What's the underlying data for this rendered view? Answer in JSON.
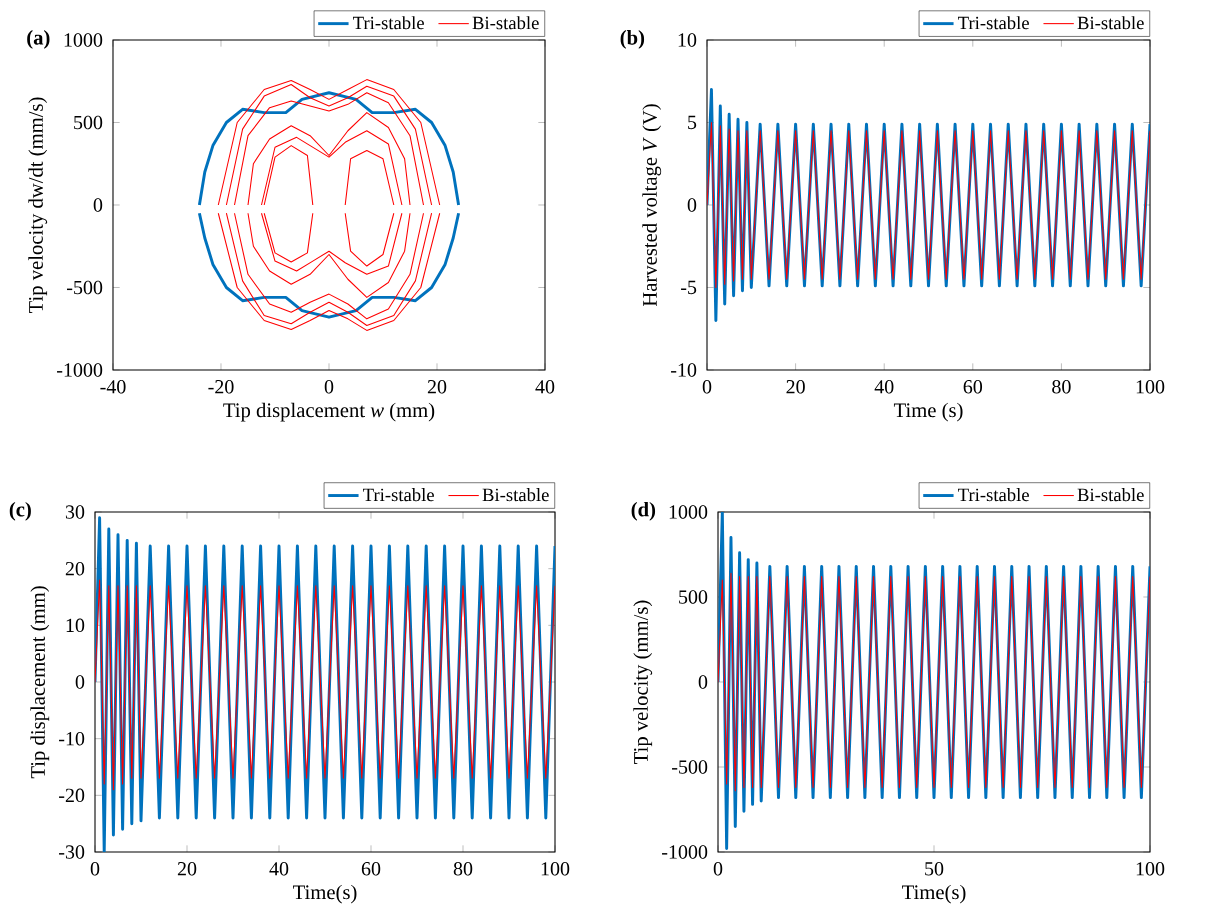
{
  "chart_data": [
    {
      "type": "line",
      "title": "**(a)**",
      "xlabel": "Tip displacement *w* (mm)",
      "ylabel": "Tip velocity dw/dt (mm/s)",
      "xlim": [
        -40,
        40
      ],
      "xticks": [
        -40,
        -20,
        0,
        20,
        40
      ],
      "ylim": [
        -1000,
        1000
      ],
      "yticks": [
        -1000,
        -500,
        0,
        500,
        1000
      ],
      "legend": "top right",
      "grid": false,
      "series": [
        {
          "name": "Tri-stable",
          "color": "#0072bd",
          "x": [
            -24,
            -23,
            -21.5,
            -19,
            -16,
            -12,
            -8,
            -5,
            0,
            5,
            8,
            12,
            16,
            19,
            21.5,
            23,
            24
          ],
          "values": [
            0,
            200,
            360,
            500,
            580,
            560,
            560,
            640,
            680,
            640,
            560,
            560,
            580,
            500,
            360,
            200,
            0
          ]
        },
        {
          "color": "#0072bd",
          "x": [
            -24,
            -23,
            -21.5,
            -19,
            -16,
            -12,
            -8,
            -5,
            0,
            5,
            8,
            12,
            16,
            19,
            21.5,
            23,
            24
          ],
          "values": [
            -50,
            -200,
            -360,
            -500,
            -580,
            -560,
            -560,
            -640,
            -680,
            -640,
            -560,
            -560,
            -580,
            -500,
            -360,
            -200,
            -50
          ]
        },
        {
          "name": "Bi-stable",
          "color": "#ff0000",
          "x": [
            -12,
            -10,
            -7,
            -4,
            -3
          ],
          "values": [
            0,
            290,
            360,
            300,
            0
          ]
        },
        {
          "color": "#ff0000",
          "x": [
            -12,
            -10,
            -7,
            -4,
            -3
          ],
          "values": [
            -50,
            -290,
            -345,
            -290,
            -50
          ]
        },
        {
          "color": "#ff0000",
          "x": [
            3,
            4,
            7,
            10,
            12
          ],
          "values": [
            0,
            280,
            330,
            280,
            0
          ]
        },
        {
          "color": "#ff0000",
          "x": [
            3,
            4,
            7,
            10,
            12
          ],
          "values": [
            -50,
            -280,
            -370,
            -300,
            -50
          ]
        },
        {
          "color": "#ff0000",
          "x": [
            -12.5,
            -10,
            -6,
            -3,
            0,
            3,
            7,
            11,
            13.5
          ],
          "values": [
            0,
            350,
            410,
            350,
            290,
            380,
            450,
            370,
            0
          ]
        },
        {
          "color": "#ff0000",
          "x": [
            -12.5,
            -10,
            -6,
            -3,
            0,
            3,
            7,
            11,
            13.5
          ],
          "values": [
            -50,
            -340,
            -400,
            -340,
            -280,
            -350,
            -420,
            -370,
            -50
          ]
        },
        {
          "color": "#ff0000",
          "x": [
            -15,
            -14,
            -11,
            -7,
            -3.5,
            0,
            3.5,
            7,
            11,
            14,
            15
          ],
          "values": [
            0,
            250,
            400,
            480,
            420,
            300,
            450,
            560,
            470,
            280,
            0
          ]
        },
        {
          "color": "#ff0000",
          "x": [
            -15,
            -14,
            -11,
            -7,
            -3.5,
            0,
            3.5,
            7,
            11,
            14,
            15
          ],
          "values": [
            -50,
            -250,
            -400,
            -480,
            -420,
            -300,
            -450,
            -560,
            -470,
            -280,
            -50
          ]
        },
        {
          "color": "#ff0000",
          "x": [
            -17.5,
            -15,
            -11,
            -7,
            -3.5,
            0,
            3.5,
            7,
            11,
            15,
            17.5
          ],
          "values": [
            0,
            420,
            590,
            630,
            600,
            570,
            610,
            680,
            620,
            420,
            0
          ]
        },
        {
          "color": "#ff0000",
          "x": [
            -17.5,
            -15,
            -11,
            -7,
            -3.5,
            0,
            3.5,
            7,
            11,
            15,
            17.5
          ],
          "values": [
            -50,
            -420,
            -600,
            -650,
            -590,
            -540,
            -600,
            -690,
            -630,
            -420,
            -50
          ]
        },
        {
          "color": "#ff0000",
          "x": [
            -19,
            -16,
            -12,
            -7,
            -3.5,
            0,
            3.5,
            7,
            12,
            16,
            19
          ],
          "values": [
            0,
            460,
            660,
            730,
            650,
            600,
            650,
            720,
            660,
            460,
            0
          ]
        },
        {
          "color": "#ff0000",
          "x": [
            -19,
            -16,
            -12,
            -7,
            -3.5,
            0,
            3.5,
            7,
            12,
            16,
            19
          ],
          "values": [
            -50,
            -460,
            -670,
            -720,
            -650,
            -590,
            -650,
            -730,
            -670,
            -460,
            -50
          ]
        },
        {
          "color": "#ff0000",
          "x": [
            -20.5,
            -17,
            -12,
            -7,
            -3.5,
            0,
            3.5,
            7,
            12,
            17,
            20.5
          ],
          "values": [
            0,
            500,
            700,
            755,
            700,
            640,
            700,
            760,
            700,
            500,
            0
          ]
        },
        {
          "color": "#ff0000",
          "x": [
            -20.5,
            -17,
            -12,
            -7,
            -3.5,
            0,
            3.5,
            7,
            12,
            17,
            20.5
          ],
          "values": [
            -50,
            -500,
            -700,
            -755,
            -700,
            -640,
            -690,
            -760,
            -700,
            -500,
            -50
          ]
        }
      ]
    },
    {
      "type": "line",
      "title": "**(b)**",
      "xlabel": "Time (s)",
      "ylabel": "Harvested voltage *V* (V)",
      "xlim": [
        0,
        100
      ],
      "xticks": [
        0,
        20,
        40,
        60,
        80,
        100
      ],
      "ylim": [
        -10,
        10
      ],
      "yticks": [
        -10,
        -5,
        0,
        5,
        10
      ],
      "legend": "top right",
      "grid": false,
      "x": [
        0,
        1,
        2,
        3,
        4,
        5,
        6,
        7,
        8,
        9,
        10,
        12,
        14,
        16,
        18,
        20,
        22,
        24,
        26,
        28,
        30,
        32,
        34,
        36,
        38,
        40,
        42,
        44,
        46,
        48,
        50,
        52,
        54,
        56,
        58,
        60,
        62,
        64,
        66,
        68,
        70,
        72,
        74,
        76,
        78,
        80,
        82,
        84,
        86,
        88,
        90,
        92,
        94,
        96,
        98,
        100
      ],
      "series": [
        {
          "name": "Tri-stable",
          "color": "#0072bd",
          "values": [
            0,
            7,
            -7,
            6,
            -6,
            5.5,
            -5.5,
            5.2,
            -5.2,
            5,
            -5,
            4.9,
            -4.9,
            4.9,
            -4.9,
            4.9,
            -4.9,
            4.9,
            -4.9,
            4.9,
            -4.9,
            4.9,
            -4.9,
            4.9,
            -4.9,
            4.9,
            -4.9,
            4.9,
            -4.9,
            4.9,
            -4.9,
            4.9,
            -4.9,
            4.9,
            -4.9,
            4.9,
            -4.9,
            4.9,
            -4.9,
            4.9,
            -4.9,
            4.9,
            -4.9,
            4.9,
            -4.9,
            4.9,
            -4.9,
            4.9,
            -4.9,
            4.9,
            -4.9,
            4.9,
            -4.9,
            4.9,
            -4.9,
            4.9
          ]
        },
        {
          "name": "Bi-stable",
          "color": "#ff0000",
          "values": [
            0,
            5,
            -5,
            4.8,
            -4.8,
            4.6,
            -4.6,
            4.5,
            -4.5,
            4.5,
            -4.5,
            4.5,
            -4.5,
            4.5,
            -4.5,
            4.5,
            -4.5,
            4.5,
            -4.5,
            4.5,
            -4.5,
            4.5,
            -4.5,
            4.5,
            -4.5,
            4.5,
            -4.5,
            4.5,
            -4.5,
            4.5,
            -4.5,
            4.5,
            -4.5,
            4.5,
            -4.5,
            4.5,
            -4.5,
            4.5,
            -4.5,
            4.5,
            -4.5,
            4.5,
            -4.5,
            4.5,
            -4.5,
            4.5,
            -4.5,
            4.5,
            -4.5,
            4.5,
            -4.5,
            4.5,
            -4.5,
            4.5,
            -4.5,
            4.5
          ]
        }
      ]
    },
    {
      "type": "line",
      "title": "**(c)**",
      "xlabel": "Time(s)",
      "ylabel": "Tip displacement (mm)",
      "xlim": [
        0,
        100
      ],
      "xticks": [
        0,
        20,
        40,
        60,
        80,
        100
      ],
      "ylim": [
        -30,
        30
      ],
      "yticks": [
        -30,
        -20,
        -10,
        0,
        10,
        20,
        30
      ],
      "legend": "top right",
      "grid": false,
      "x": [
        0,
        1,
        2,
        3,
        4,
        5,
        6,
        7,
        8,
        9,
        10,
        12,
        14,
        16,
        18,
        20,
        22,
        24,
        26,
        28,
        30,
        32,
        34,
        36,
        38,
        40,
        42,
        44,
        46,
        48,
        50,
        52,
        54,
        56,
        58,
        60,
        62,
        64,
        66,
        68,
        70,
        72,
        74,
        76,
        78,
        80,
        82,
        84,
        86,
        88,
        90,
        92,
        94,
        96,
        98,
        100
      ],
      "series": [
        {
          "name": "Tri-stable",
          "color": "#0072bd",
          "values": [
            0,
            29,
            -30,
            27,
            -27,
            26,
            -26,
            25,
            -25,
            24.5,
            -24.5,
            24,
            -24,
            24,
            -24,
            24,
            -24,
            24,
            -24,
            24,
            -24,
            24,
            -24,
            24,
            -24,
            24,
            -24,
            24,
            -24,
            24,
            -24,
            24,
            -24,
            24,
            -24,
            24,
            -24,
            24,
            -24,
            24,
            -24,
            24,
            -24,
            24,
            -24,
            24,
            -24,
            24,
            -24,
            24,
            -24,
            24,
            -24,
            24,
            -24,
            24
          ]
        },
        {
          "name": "Bi-stable",
          "color": "#ff0000",
          "values": [
            0,
            18,
            -18,
            17,
            -19,
            17,
            -18,
            17,
            -17,
            17,
            -17,
            17,
            -17,
            17,
            -17,
            17,
            -17,
            17,
            -17,
            17,
            -17,
            17,
            -17,
            17,
            -17,
            17,
            -17,
            17,
            -17,
            17,
            -17,
            17,
            -17,
            17,
            -17,
            17,
            -17,
            17,
            -17,
            17,
            -17,
            17,
            -17,
            17,
            -17,
            17,
            -17,
            17,
            -17,
            17,
            -17,
            17,
            -17,
            17,
            -17,
            17
          ]
        }
      ]
    },
    {
      "type": "line",
      "title": "**(d)**",
      "xlabel": "Time(s)",
      "ylabel": "Tip velocity (mm/s)",
      "xlim": [
        0,
        100
      ],
      "xticks": [
        0,
        50,
        100
      ],
      "ylim": [
        -1000,
        1000
      ],
      "yticks": [
        -1000,
        -500,
        0,
        500,
        1000
      ],
      "legend": "top right",
      "grid": false,
      "x": [
        0,
        1,
        2,
        3,
        4,
        5,
        6,
        7,
        8,
        9,
        10,
        12,
        14,
        16,
        18,
        20,
        22,
        24,
        26,
        28,
        30,
        32,
        34,
        36,
        38,
        40,
        42,
        44,
        46,
        48,
        50,
        52,
        54,
        56,
        58,
        60,
        62,
        64,
        66,
        68,
        70,
        72,
        74,
        76,
        78,
        80,
        82,
        84,
        86,
        88,
        90,
        92,
        94,
        96,
        98,
        100
      ],
      "series": [
        {
          "name": "Tri-stable",
          "color": "#0072bd",
          "values": [
            0,
            1000,
            -980,
            850,
            -850,
            760,
            -760,
            720,
            -720,
            700,
            -700,
            680,
            -680,
            680,
            -680,
            680,
            -680,
            680,
            -680,
            680,
            -680,
            680,
            -680,
            680,
            -680,
            680,
            -680,
            680,
            -680,
            680,
            -680,
            680,
            -680,
            680,
            -680,
            680,
            -680,
            680,
            -680,
            680,
            -680,
            680,
            -680,
            680,
            -680,
            680,
            -680,
            680,
            -680,
            680,
            -680,
            680,
            -680,
            680,
            -680,
            680
          ]
        },
        {
          "name": "Bi-stable",
          "color": "#ff0000",
          "values": [
            0,
            600,
            -600,
            640,
            -640,
            620,
            -620,
            620,
            -620,
            620,
            -620,
            620,
            -620,
            620,
            -620,
            620,
            -620,
            620,
            -620,
            620,
            -620,
            620,
            -620,
            620,
            -620,
            620,
            -620,
            620,
            -620,
            620,
            -620,
            620,
            -620,
            620,
            -620,
            620,
            -620,
            620,
            -620,
            620,
            -620,
            620,
            -620,
            620,
            -620,
            620,
            -620,
            620,
            -620,
            620,
            -620,
            620,
            -620,
            620,
            -620,
            620
          ]
        }
      ]
    }
  ]
}
